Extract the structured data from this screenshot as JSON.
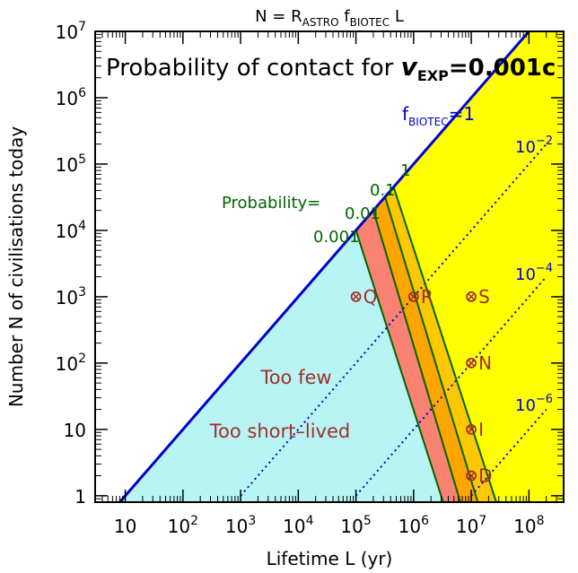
{
  "chart_data": {
    "type": "area",
    "formula": {
      "main": "N = R",
      "sub1": "ASTRO",
      "f": " f",
      "sub2": "BIOTEC",
      "tail": " L"
    },
    "panel_title": {
      "prefix": "Probability of contact for ",
      "v": "v",
      "sub": "EXP",
      "value": "=0.001c"
    },
    "xlabel": "Lifetime L (yr)",
    "ylabel": "Number N of civilisations today",
    "x_scale": "log",
    "y_scale": "log",
    "xlim": [
      3,
      400000000
    ],
    "ylim": [
      0.8,
      10000000
    ],
    "x_ticks": [
      {
        "value": 10,
        "base": "10",
        "exp": ""
      },
      {
        "value": 100,
        "base": "10",
        "exp": "2"
      },
      {
        "value": 1000,
        "base": "10",
        "exp": "3"
      },
      {
        "value": 10000,
        "base": "10",
        "exp": "4"
      },
      {
        "value": 100000,
        "base": "10",
        "exp": "5"
      },
      {
        "value": 1000000,
        "base": "10",
        "exp": "6"
      },
      {
        "value": 10000000,
        "base": "10",
        "exp": "7"
      },
      {
        "value": 100000000,
        "base": "10",
        "exp": "8"
      }
    ],
    "y_ticks": [
      {
        "value": 1,
        "base": "1",
        "exp": ""
      },
      {
        "value": 10,
        "base": "10",
        "exp": ""
      },
      {
        "value": 100,
        "base": "10",
        "exp": "2"
      },
      {
        "value": 1000,
        "base": "10",
        "exp": "3"
      },
      {
        "value": 10000,
        "base": "10",
        "exp": "4"
      },
      {
        "value": 100000,
        "base": "10",
        "exp": "5"
      },
      {
        "value": 1000000,
        "base": "10",
        "exp": "6"
      },
      {
        "value": 10000000,
        "base": "10",
        "exp": "7"
      }
    ],
    "upper_bound_line": {
      "points": [
        [
          10,
          1
        ],
        [
          100000000,
          10000000
        ]
      ],
      "label_f": "f",
      "label_sub": "BIOTEC",
      "label_val": "=1"
    },
    "dotted_lines": [
      {
        "label": "10",
        "exp": "−2",
        "points": [
          [
            1000,
            1
          ],
          [
            200000000,
            200000
          ]
        ]
      },
      {
        "label": "10",
        "exp": "−4",
        "points": [
          [
            100000,
            1
          ],
          [
            200000000,
            2000
          ]
        ]
      },
      {
        "label": "10",
        "exp": "−6",
        "points": [
          [
            10000000,
            1
          ],
          [
            200000000,
            20
          ]
        ]
      }
    ],
    "probability_label": "Probability=",
    "probability_curves": [
      {
        "label": "0.001",
        "points": [
          [
            100000,
            10000
          ],
          [
            3000000,
            1
          ]
        ]
      },
      {
        "label": "0.01",
        "points": [
          [
            200000,
            20000
          ],
          [
            6000000,
            1
          ]
        ]
      },
      {
        "label": "0.1",
        "points": [
          [
            320000,
            32000
          ],
          [
            12000000,
            1
          ]
        ]
      },
      {
        "label": "1",
        "points": [
          [
            450000,
            45000
          ],
          [
            25000000,
            1
          ]
        ]
      }
    ],
    "regions": [
      {
        "name": "too-few",
        "color": "#b8f4f4"
      },
      {
        "name": "p-0.001",
        "color": "#fa8272"
      },
      {
        "name": "p-0.01",
        "color": "#ffa500"
      },
      {
        "name": "p-0.1",
        "color": "#ffc800"
      },
      {
        "name": "p-1",
        "color": "#ffff00"
      }
    ],
    "markers": [
      {
        "label": "Q",
        "x": 100000,
        "y": 1000
      },
      {
        "label": "R",
        "x": 1000000,
        "y": 1000
      },
      {
        "label": "S",
        "x": 10000000,
        "y": 1000
      },
      {
        "label": "N",
        "x": 10000000,
        "y": 100
      },
      {
        "label": "I",
        "x": 10000000,
        "y": 10
      },
      {
        "label": "D",
        "x": 10000000,
        "y": 2
      }
    ],
    "annotations": [
      {
        "text": "Too few",
        "x": 1000000,
        "y": 70
      },
      {
        "text": "Too short–lived",
        "x": 300000,
        "y": 10
      }
    ],
    "colors": {
      "line_blue": "#0000cc",
      "curve_green": "#006400",
      "marker_brown": "#a0302a",
      "annotation_brown": "#a0302a",
      "probability_green": "#006400"
    }
  }
}
